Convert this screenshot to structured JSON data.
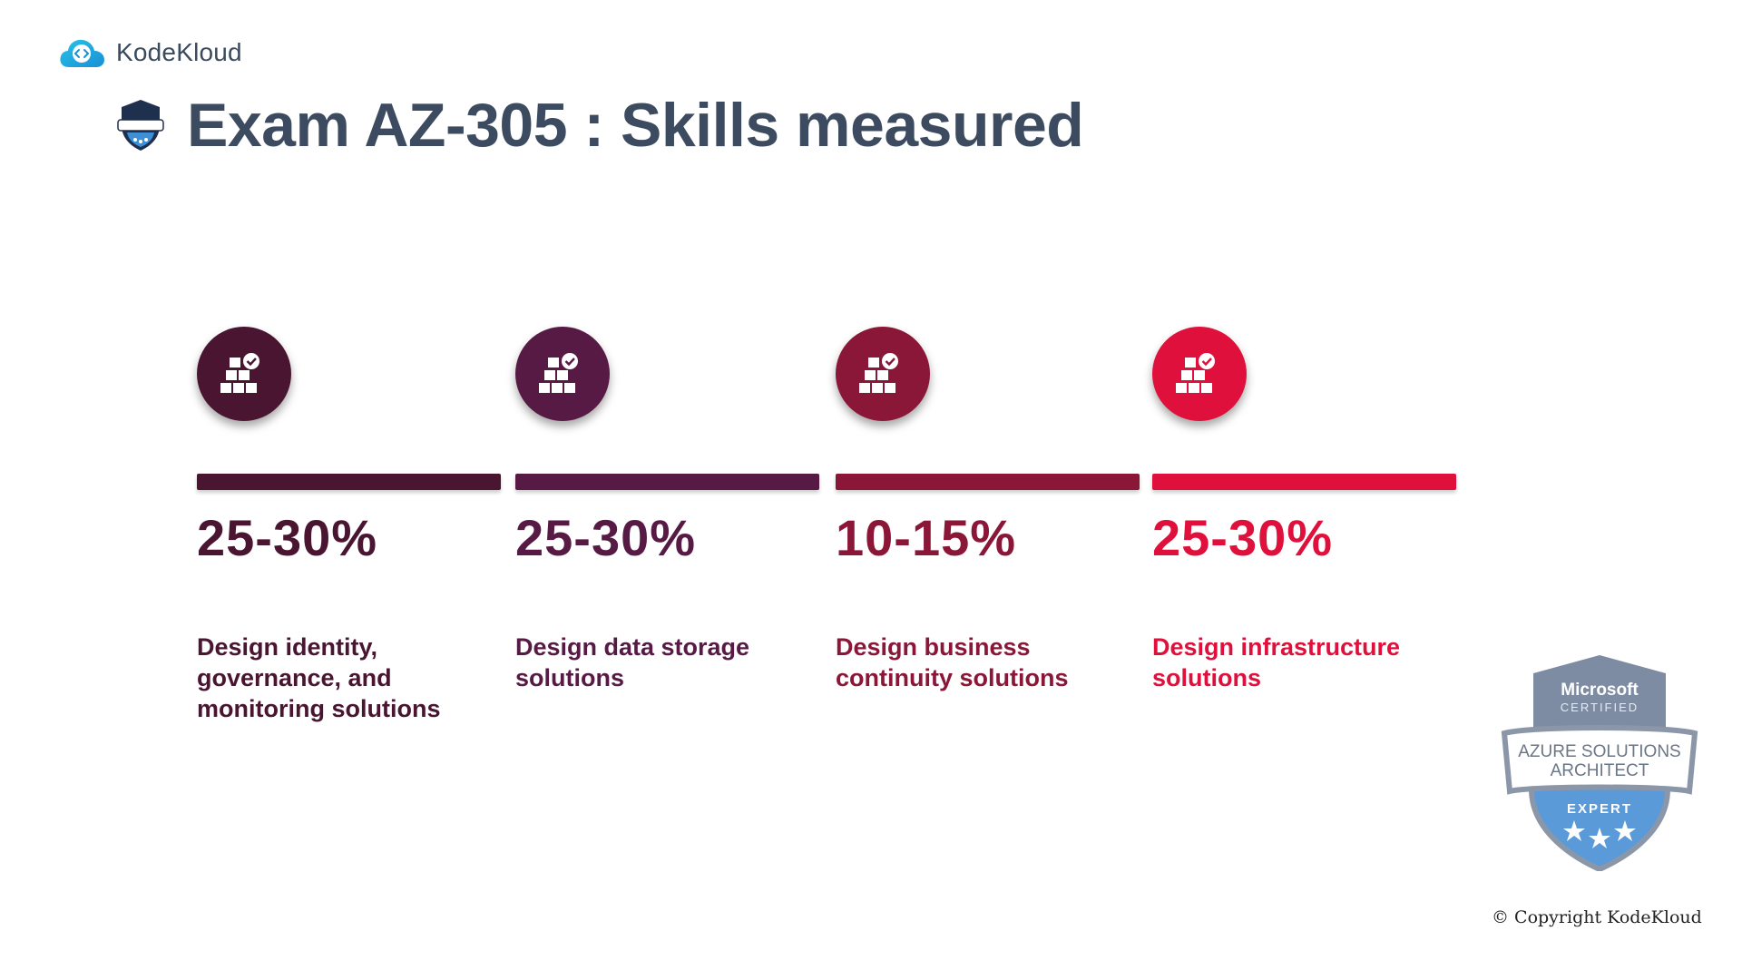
{
  "brand": {
    "name": "KodeKloud"
  },
  "title": "Exam AZ-305 : Skills measured",
  "colors": {
    "title": "#3d4b60",
    "skill_1": "#4a1530",
    "skill_2": "#571a44",
    "skill_3": "#8a1638",
    "skill_4": "#e0103c"
  },
  "skills": [
    {
      "percent": "25-30%",
      "description": "Design identity, governance, and monitoring solutions",
      "icon": "boxes-check-icon"
    },
    {
      "percent": "25-30%",
      "description": "Design data storage solutions",
      "icon": "boxes-check-icon"
    },
    {
      "percent": "10-15%",
      "description": "Design business continuity solutions",
      "icon": "boxes-check-icon"
    },
    {
      "percent": "25-30%",
      "description": "Design infrastructure solutions",
      "icon": "boxes-check-icon"
    }
  ],
  "badge": {
    "line1": "Microsoft",
    "line2": "CERTIFIED",
    "line3": "AZURE SOLUTIONS",
    "line4": "ARCHITECT",
    "line5": "EXPERT"
  },
  "copyright": "© Copyright KodeKloud"
}
